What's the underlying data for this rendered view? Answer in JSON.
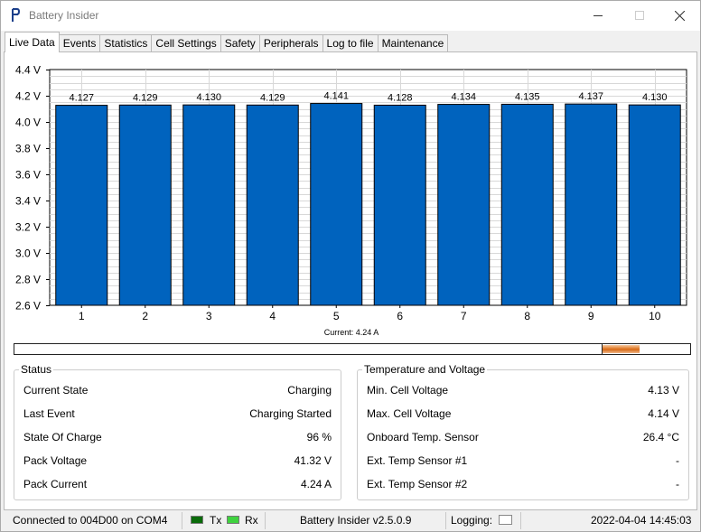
{
  "window": {
    "title": "Battery Insider"
  },
  "tabs": [
    {
      "label": "Live Data",
      "active": true
    },
    {
      "label": "Events"
    },
    {
      "label": "Statistics"
    },
    {
      "label": "Cell Settings"
    },
    {
      "label": "Safety"
    },
    {
      "label": "Peripherals"
    },
    {
      "label": "Log to file"
    },
    {
      "label": "Maintenance"
    }
  ],
  "chart_data": {
    "type": "bar",
    "title": "",
    "xlabel": "",
    "ylabel": "",
    "categories": [
      "1",
      "2",
      "3",
      "4",
      "5",
      "6",
      "7",
      "8",
      "9",
      "10"
    ],
    "values": [
      4.127,
      4.129,
      4.13,
      4.129,
      4.141,
      4.128,
      4.134,
      4.135,
      4.137,
      4.13
    ],
    "value_labels": [
      "4.127",
      "4.129",
      "4.130",
      "4.129",
      "4.141",
      "4.128",
      "4.134",
      "4.135",
      "4.137",
      "4.130"
    ],
    "ylim": [
      2.6,
      4.4
    ],
    "yticks": [
      2.6,
      2.8,
      3.0,
      3.2,
      3.4,
      3.6,
      3.8,
      4.0,
      4.2,
      4.4
    ],
    "ytick_labels": [
      "2.6 V",
      "2.8 V",
      "3.0 V",
      "3.2 V",
      "3.4 V",
      "3.6 V",
      "3.8 V",
      "4.0 V",
      "4.2 V",
      "4.4 V"
    ],
    "bar_color": "#0063be",
    "grid": true
  },
  "current": {
    "label": "Current: 4.24 A",
    "gauge_zero_fraction": 0.869,
    "gauge_fill_fraction": 0.056,
    "fill_color": "#e07a2a"
  },
  "status": {
    "title": "Status",
    "rows": [
      {
        "label": "Current State",
        "value": "Charging"
      },
      {
        "label": "Last Event",
        "value": "Charging Started"
      },
      {
        "label": "State Of Charge",
        "value": "96 %"
      },
      {
        "label": "Pack Voltage",
        "value": "41.32 V"
      },
      {
        "label": "Pack Current",
        "value": "4.24 A"
      }
    ]
  },
  "temp_voltage": {
    "title": "Temperature and Voltage",
    "rows": [
      {
        "label": "Min. Cell Voltage",
        "value": "4.13 V"
      },
      {
        "label": "Max. Cell Voltage",
        "value": "4.14 V"
      },
      {
        "label": "Onboard Temp. Sensor",
        "value": "26.4 °C"
      },
      {
        "label": "Ext. Temp Sensor #1",
        "value": "-"
      },
      {
        "label": "Ext. Temp Sensor #2",
        "value": "-"
      }
    ]
  },
  "statusbar": {
    "connection": "Connected to 004D00 on COM4",
    "tx_label": "Tx",
    "rx_label": "Rx",
    "tx_color": "#0a6b0a",
    "rx_color": "#3fd23f",
    "version": "Battery Insider v2.5.0.9",
    "logging_label": "Logging:",
    "datetime": "2022-04-04 14:45:03"
  }
}
